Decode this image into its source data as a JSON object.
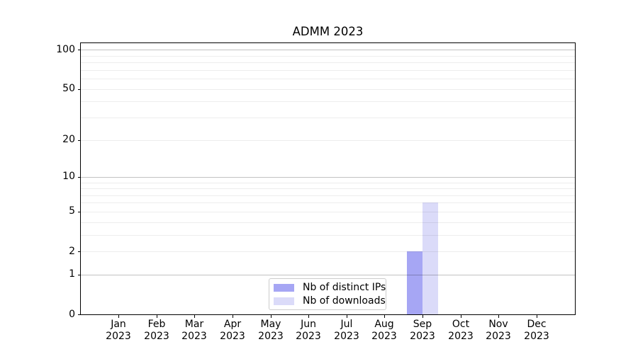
{
  "title": "ADMM 2023",
  "colors": {
    "distinct_ips_bar": "#a6a6f4",
    "downloads_bar": "#dbdbf9",
    "spine": "#000000",
    "major_grid": "#c3c3c3",
    "minor_grid": "#ededed",
    "legend_border": "#cccccc"
  },
  "chart_data": {
    "type": "bar",
    "title": "ADMM 2023",
    "categories": [
      "Jan 2023",
      "Feb 2023",
      "Mar 2023",
      "Apr 2023",
      "May 2023",
      "Jun 2023",
      "Jul 2023",
      "Aug 2023",
      "Sep 2023",
      "Oct 2023",
      "Nov 2023",
      "Dec 2023"
    ],
    "x_tick_months": [
      "Jan",
      "Feb",
      "Mar",
      "Apr",
      "May",
      "Jun",
      "Jul",
      "Aug",
      "Sep",
      "Oct",
      "Nov",
      "Dec"
    ],
    "x_tick_year": "2023",
    "series": [
      {
        "name": "Nb of distinct IPs",
        "color": "#a6a6f4",
        "values": [
          0,
          0,
          0,
          0,
          0,
          0,
          0,
          0,
          2,
          0,
          0,
          0
        ]
      },
      {
        "name": "Nb of downloads",
        "color": "#dbdbf9",
        "values": [
          0,
          0,
          0,
          0,
          0,
          0,
          0,
          0,
          6,
          0,
          0,
          0
        ]
      }
    ],
    "xlabel": "",
    "ylabel": "",
    "yscale": "log1p",
    "ylim": [
      0,
      114
    ],
    "y_ticks": [
      0,
      1,
      2,
      5,
      10,
      20,
      50,
      100
    ],
    "y_major_grid": [
      1,
      10,
      100
    ],
    "y_minor_grid": [
      2,
      3,
      4,
      5,
      6,
      7,
      8,
      9,
      20,
      30,
      40,
      50,
      60,
      70,
      80,
      90
    ],
    "grid": "horizontal",
    "legend_position": "lower center",
    "legend_labels": [
      "Nb of distinct IPs",
      "Nb of downloads"
    ]
  }
}
